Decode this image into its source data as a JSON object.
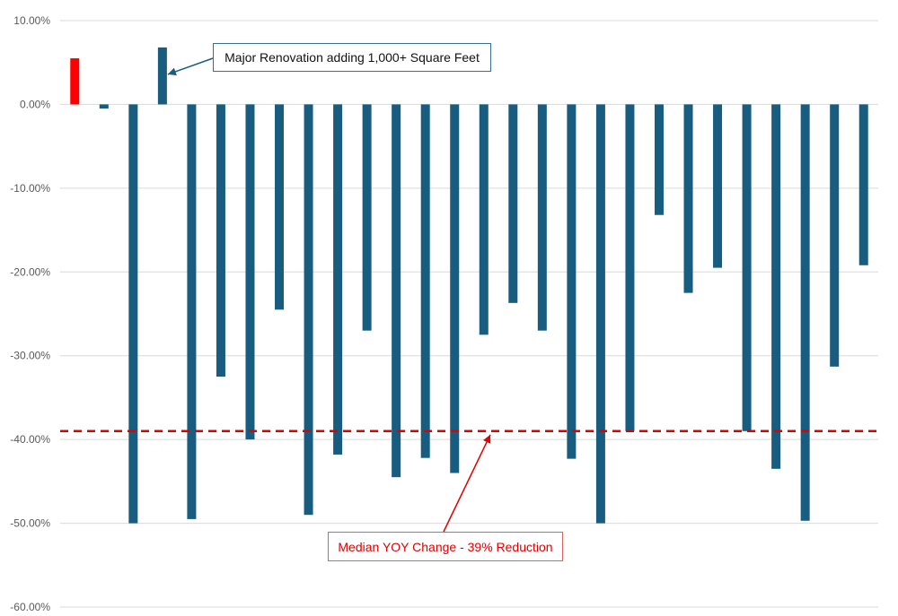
{
  "chart_data": {
    "type": "bar",
    "title": "",
    "xlabel": "",
    "ylabel": "",
    "ylim": [
      -0.6,
      0.1
    ],
    "yticks": [
      0.1,
      0.0,
      -0.1,
      -0.2,
      -0.3,
      -0.4,
      -0.5,
      -0.6
    ],
    "ytick_labels": [
      "10.00%",
      "0.00%",
      "-10.00%",
      "-20.00%",
      "-30.00%",
      "-40.00%",
      "-50.00%",
      "-60.00%"
    ],
    "grid": true,
    "values": [
      0.055,
      -0.005,
      -0.5,
      0.068,
      -0.495,
      -0.325,
      -0.4,
      -0.245,
      -0.49,
      -0.418,
      -0.27,
      -0.445,
      -0.422,
      -0.44,
      -0.275,
      -0.237,
      -0.27,
      -0.423,
      -0.5,
      -0.39,
      -0.132,
      -0.225,
      -0.195,
      -0.39,
      -0.435,
      -0.497,
      -0.313,
      -0.192
    ],
    "bar_colors": [
      "#ff0000",
      "#185d80",
      "#185d80",
      "#185d80",
      "#185d80",
      "#185d80",
      "#185d80",
      "#185d80",
      "#185d80",
      "#185d80",
      "#185d80",
      "#185d80",
      "#185d80",
      "#185d80",
      "#185d80",
      "#185d80",
      "#185d80",
      "#185d80",
      "#185d80",
      "#185d80",
      "#185d80",
      "#185d80",
      "#185d80",
      "#185d80",
      "#185d80",
      "#185d80",
      "#185d80",
      "#185d80"
    ],
    "median_line": {
      "value": -0.39,
      "color": "#e00000"
    },
    "annotations": [
      {
        "text": "Major Renovation adding 1,000+ Square Feet",
        "target_bar": 3,
        "target_value": 0.038,
        "color": "#185d80"
      },
      {
        "text": "Median YOY Change - 39% Reduction",
        "target_bar": 14,
        "target_value": -0.39,
        "color": "#e00000"
      }
    ]
  }
}
